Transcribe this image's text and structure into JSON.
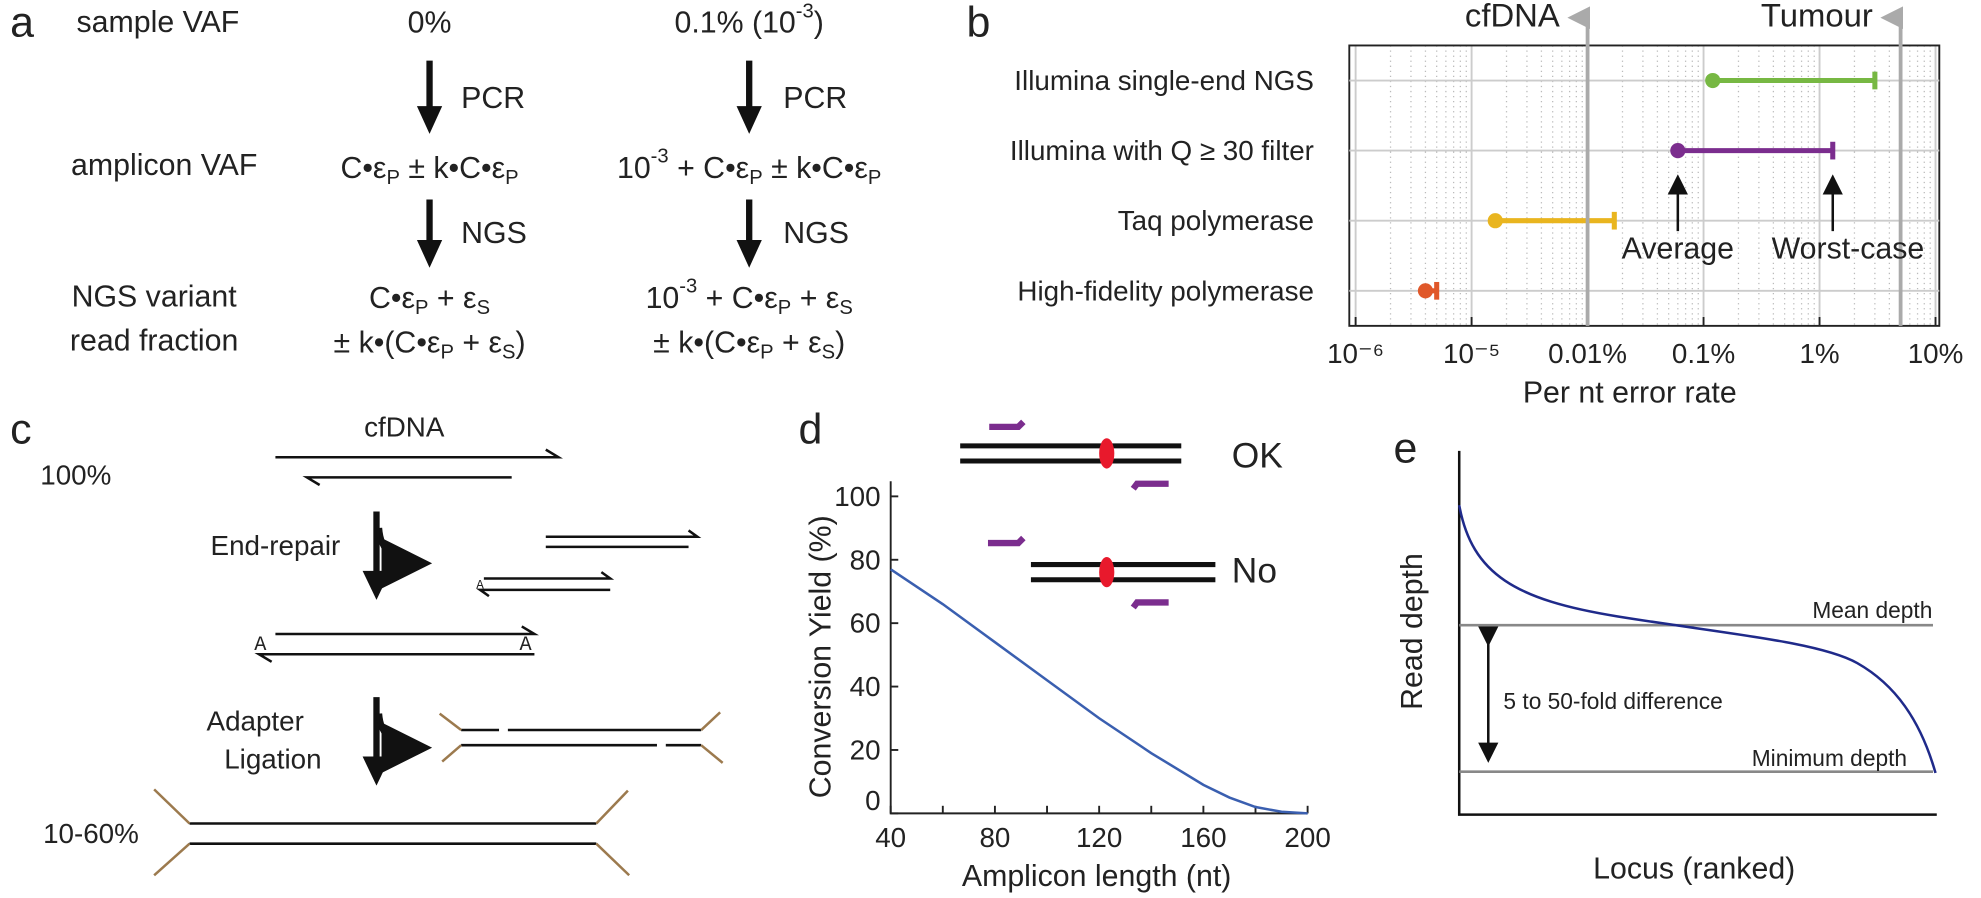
{
  "panel_a": {
    "label": "a",
    "rows": [
      "sample VAF",
      "amplicon VAF",
      "NGS variant",
      "read fraction"
    ],
    "arrows": [
      "PCR",
      "NGS"
    ],
    "columns": [
      [
        [
          {
            "t": "0%"
          }
        ],
        [
          {
            "t": "C•ε"
          },
          {
            "sub": "P"
          },
          {
            "t": " ± k•C•ε"
          },
          {
            "sub": "P"
          }
        ],
        [
          {
            "t": "C•ε"
          },
          {
            "sub": "P"
          },
          {
            "t": " + ε"
          },
          {
            "sub": "S"
          }
        ],
        [
          {
            "t": "± k•(C•ε"
          },
          {
            "sub": "P"
          },
          {
            "t": " + ε"
          },
          {
            "sub": "S"
          },
          {
            "t": ")"
          }
        ]
      ],
      [
        [
          {
            "t": "0.1% (10"
          },
          {
            "sup": "-3"
          },
          {
            "t": ")"
          }
        ],
        [
          {
            "t": "10"
          },
          {
            "sup": "-3"
          },
          {
            "t": " + C•ε"
          },
          {
            "sub": "P"
          },
          {
            "t": " ± k•C•ε"
          },
          {
            "sub": "P"
          }
        ],
        [
          {
            "t": "10"
          },
          {
            "sup": "-3"
          },
          {
            "t": " + C•ε"
          },
          {
            "sub": "P"
          },
          {
            "t": " + ε"
          },
          {
            "sub": "S"
          }
        ],
        [
          {
            "t": "± k•(C•ε"
          },
          {
            "sub": "P"
          },
          {
            "t": " + ε"
          },
          {
            "sub": "S"
          },
          {
            "t": ")"
          }
        ]
      ]
    ]
  },
  "chart_data": [
    {
      "type": "range",
      "panel_label": "b",
      "categories": [
        "Illumina single-end NGS",
        "Illumina with Q ≥ 30 filter",
        "Taq polymerase",
        "High-fidelity polymerase"
      ],
      "values": [
        [
          0.0012,
          0.03
        ],
        [
          0.0006,
          0.013
        ],
        [
          1.6e-05,
          0.00017
        ],
        [
          4e-06,
          5e-06
        ]
      ],
      "colors": [
        "#77b843",
        "#7b2d8e",
        "#e9b51f",
        "#e0582a"
      ],
      "xscale": "log",
      "xlim": [
        1e-06,
        0.1
      ],
      "xticks": [
        {
          "value": 1e-06,
          "label": "10⁻⁶"
        },
        {
          "value": 1e-05,
          "label": "10⁻⁵"
        },
        {
          "value": 0.0001,
          "label": "0.01%"
        },
        {
          "value": 0.001,
          "label": "0.1%"
        },
        {
          "value": 0.01,
          "label": "1%"
        },
        {
          "value": 0.1,
          "label": "10%"
        }
      ],
      "grid": true,
      "minor_grid": true,
      "xlabel": "Per nt error rate",
      "reference_lines": [
        {
          "label": "cfDNA",
          "value": 0.0001
        },
        {
          "label": "Tumour",
          "value": 0.05
        }
      ],
      "annotations": [
        "Average",
        "Worst-case"
      ]
    },
    {
      "type": "line",
      "panel_label": "d",
      "x": [
        40,
        60,
        80,
        100,
        120,
        140,
        160,
        170,
        180,
        190,
        200
      ],
      "values": [
        77,
        66,
        54,
        42,
        30,
        19,
        9,
        5,
        2,
        0.5,
        0
      ],
      "color": "#3a5fb0",
      "xlim": [
        40,
        200
      ],
      "ylim": [
        0,
        100
      ],
      "xticks": [
        40,
        80,
        120,
        160,
        200
      ],
      "xminorticks": [
        60,
        100,
        140,
        180
      ],
      "yticks": [
        0,
        20,
        40,
        60,
        80,
        100
      ],
      "xlabel": "Amplicon length (nt)",
      "ylabel": "Conversion Yield (%)",
      "insets": [
        {
          "text": "OK",
          "color": "#1f78c8"
        },
        {
          "text": "No",
          "color": "#e8192c"
        }
      ]
    }
  ],
  "panel_c": {
    "label": "c",
    "molecule": "cfDNA",
    "start_fraction": "100%",
    "step1": "End-repair",
    "a_tail": "A",
    "step2": [
      "Adapter",
      "Ligation"
    ],
    "end_fraction": "10-60%"
  },
  "panel_e": {
    "label": "e",
    "ylabel": "Read depth",
    "xlabel": "Locus (ranked)",
    "mean": "Mean depth",
    "minimum": "Minimum depth",
    "difference": "5 to 50-fold difference"
  }
}
